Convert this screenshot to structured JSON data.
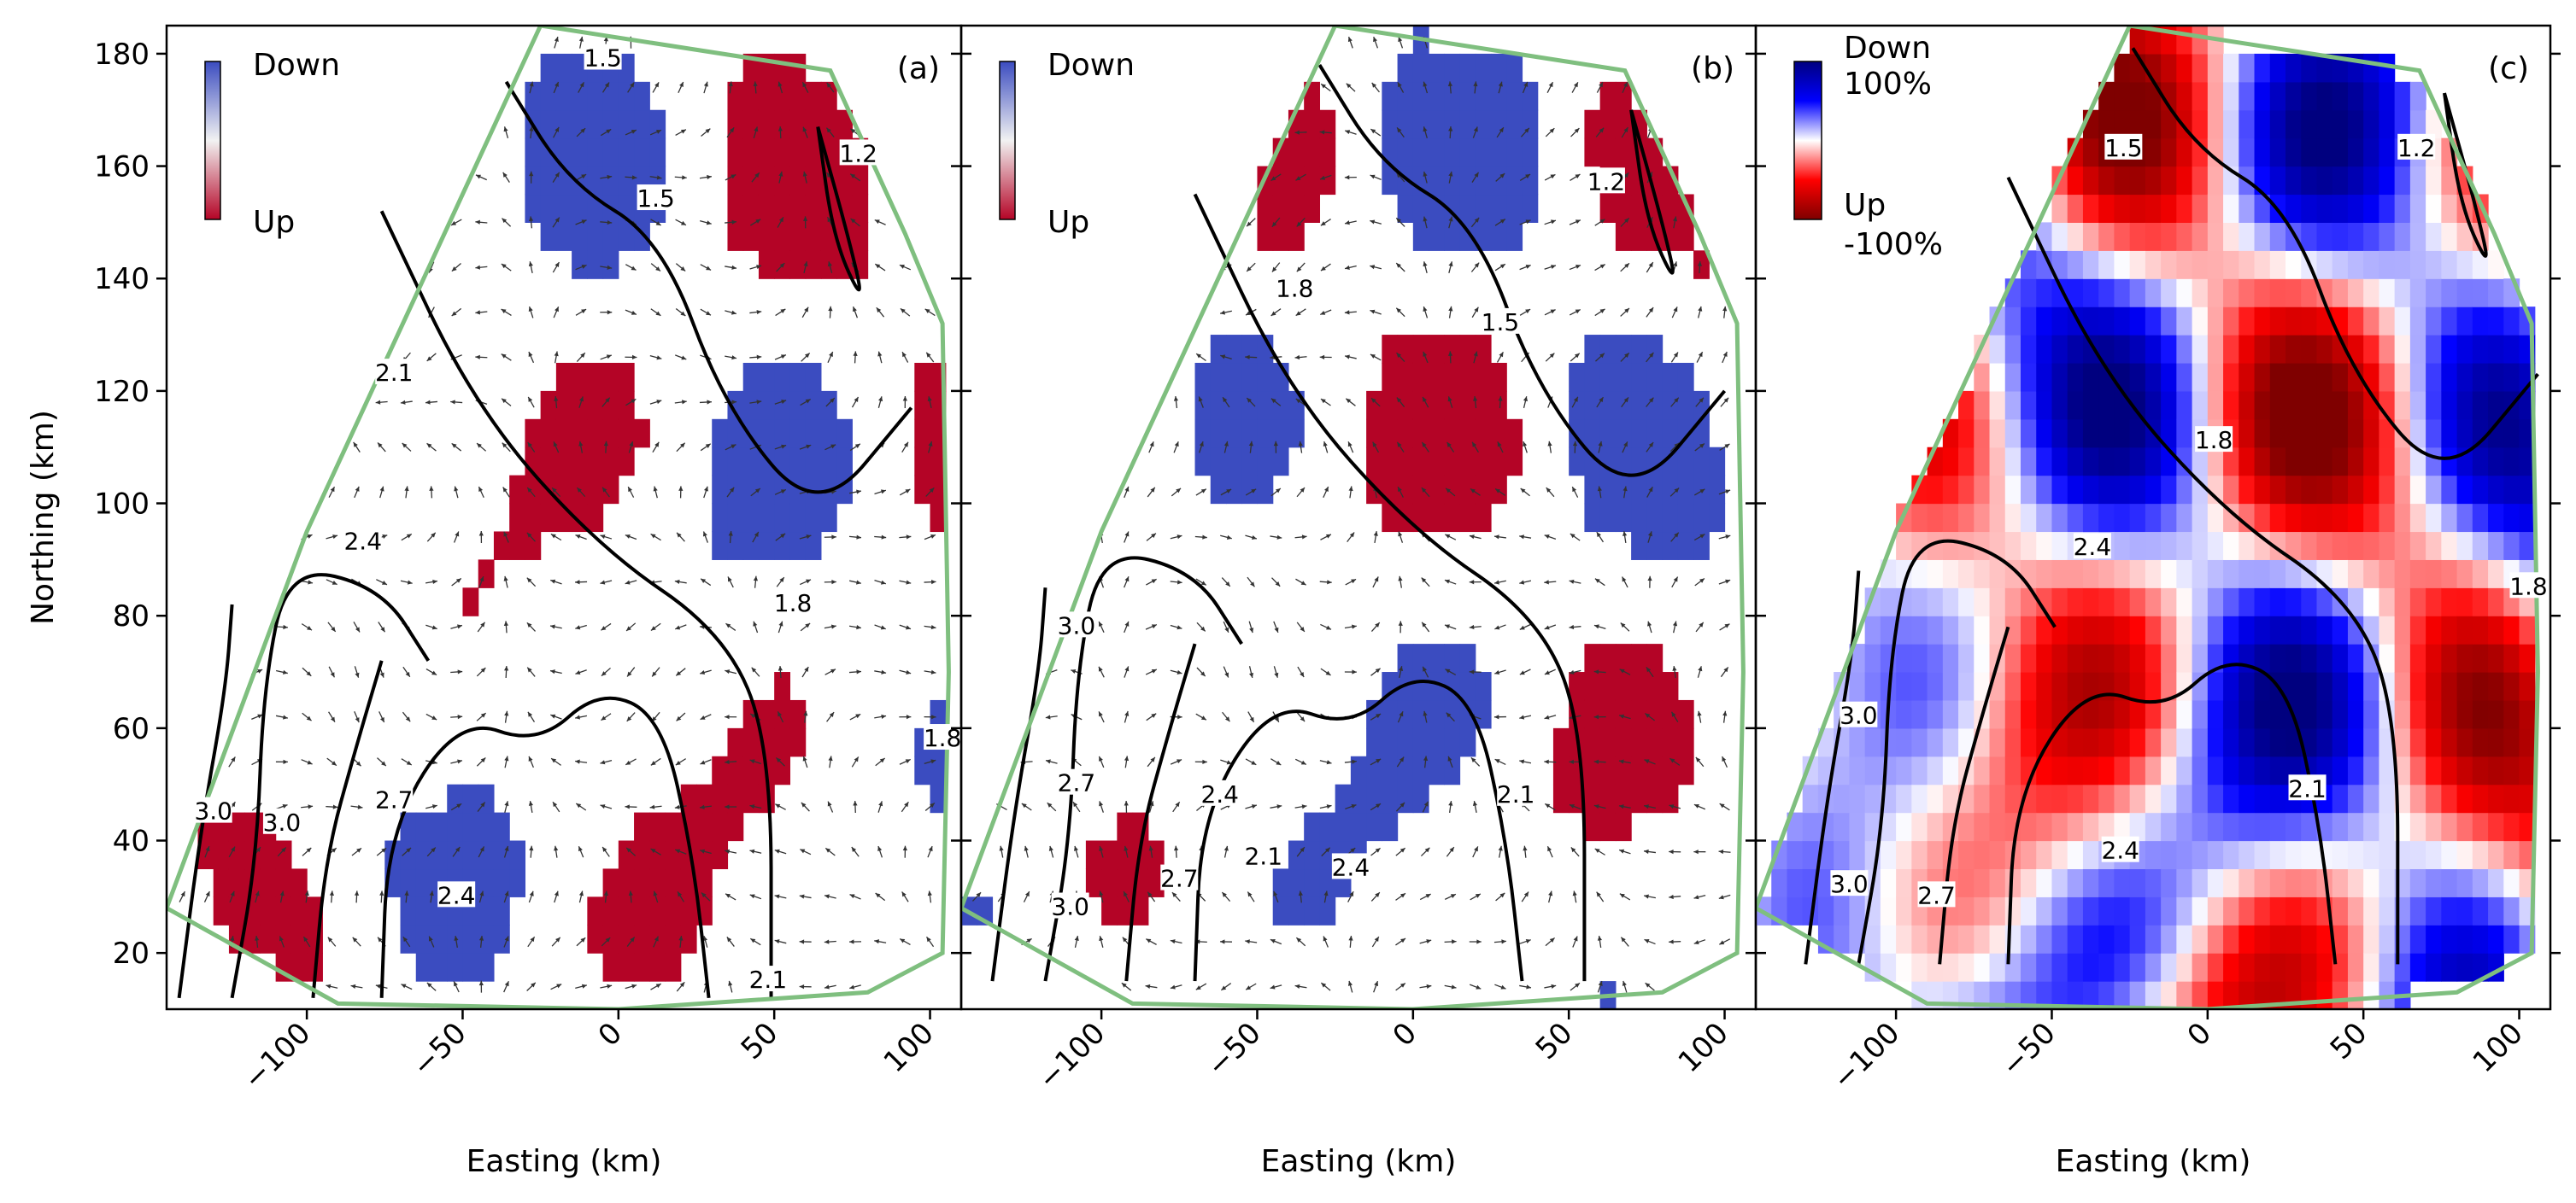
{
  "chart_data": [
    {
      "type": "heatmap",
      "panel_label": "(a)",
      "xlabel": "Easting (km)",
      "ylabel": "Northing (km)",
      "xlim": [
        -145,
        110
      ],
      "ylim": [
        10,
        185
      ],
      "xticks": [
        -100,
        -50,
        0,
        50,
        100
      ],
      "yticks": [
        20,
        40,
        60,
        80,
        100,
        120,
        140,
        160,
        180
      ],
      "colorbar": {
        "top_label": "Down",
        "bottom_label": "Up",
        "top_color": "#3b4cc0",
        "bottom_color": "#b40426"
      },
      "colors": {
        "down": "#3b4cc0",
        "up": "#b40426",
        "boundary": "#7fbf7f",
        "contour": "#000000"
      },
      "contour_labels": [
        {
          "text": "1.5",
          "x": -5,
          "y": 179
        },
        {
          "text": "1.5",
          "x": 12,
          "y": 154
        },
        {
          "text": "1.2",
          "x": 77,
          "y": 162
        },
        {
          "text": "2.1",
          "x": -72,
          "y": 123
        },
        {
          "text": "2.4",
          "x": -82,
          "y": 93
        },
        {
          "text": "1.8",
          "x": 56,
          "y": 82
        },
        {
          "text": "1.8",
          "x": 104,
          "y": 58
        },
        {
          "text": "3.0",
          "x": -130,
          "y": 45
        },
        {
          "text": "3.0",
          "x": -108,
          "y": 43
        },
        {
          "text": "2.7",
          "x": -72,
          "y": 47
        },
        {
          "text": "2.4",
          "x": -52,
          "y": 30
        },
        {
          "text": "2.1",
          "x": 48,
          "y": 15
        }
      ]
    },
    {
      "type": "heatmap",
      "panel_label": "(b)",
      "xlabel": "Easting (km)",
      "ylabel": "",
      "xlim": [
        -145,
        110
      ],
      "ylim": [
        10,
        185
      ],
      "xticks": [
        -100,
        -50,
        0,
        50,
        100
      ],
      "yticks": [
        20,
        40,
        60,
        80,
        100,
        120,
        140,
        160,
        180
      ],
      "colorbar": {
        "top_label": "Down",
        "bottom_label": "Up",
        "top_color": "#3b4cc0",
        "bottom_color": "#b40426"
      },
      "colors": {
        "down": "#3b4cc0",
        "up": "#b40426",
        "boundary": "#7fbf7f",
        "contour": "#000000"
      },
      "contour_labels": [
        {
          "text": "1.2",
          "x": 62,
          "y": 157
        },
        {
          "text": "1.8",
          "x": -38,
          "y": 138
        },
        {
          "text": "1.5",
          "x": 28,
          "y": 132
        },
        {
          "text": "3.0",
          "x": -108,
          "y": 78
        },
        {
          "text": "2.7",
          "x": -108,
          "y": 50
        },
        {
          "text": "2.4",
          "x": -62,
          "y": 48
        },
        {
          "text": "2.1",
          "x": 33,
          "y": 48
        },
        {
          "text": "2.1",
          "x": -48,
          "y": 37
        },
        {
          "text": "2.4",
          "x": -20,
          "y": 35
        },
        {
          "text": "2.7",
          "x": -75,
          "y": 33
        },
        {
          "text": "3.0",
          "x": -110,
          "y": 28
        }
      ]
    },
    {
      "type": "heatmap",
      "panel_label": "(c)",
      "xlabel": "Easting (km)",
      "ylabel": "",
      "xlim": [
        -145,
        110
      ],
      "ylim": [
        10,
        185
      ],
      "xticks": [
        -100,
        -50,
        0,
        50,
        100
      ],
      "yticks": [
        20,
        40,
        60,
        80,
        100,
        120,
        140,
        160,
        180
      ],
      "colorbar": {
        "top_label": "Down",
        "top_value": "100%",
        "bottom_label": "Up",
        "bottom_value": "-100%",
        "top_color": "#00007f",
        "bottom_color": "#7f0000"
      },
      "colors": {
        "boundary": "#7fbf7f",
        "contour": "#000000"
      },
      "contour_labels": [
        {
          "text": "1.5",
          "x": -27,
          "y": 163
        },
        {
          "text": "1.2",
          "x": 67,
          "y": 163
        },
        {
          "text": "1.8",
          "x": 2,
          "y": 111
        },
        {
          "text": "2.4",
          "x": -37,
          "y": 92
        },
        {
          "text": "1.8",
          "x": 103,
          "y": 85
        },
        {
          "text": "3.0",
          "x": -112,
          "y": 62
        },
        {
          "text": "2.1",
          "x": 32,
          "y": 49
        },
        {
          "text": "2.4",
          "x": -28,
          "y": 38
        },
        {
          "text": "3.0",
          "x": -115,
          "y": 32
        },
        {
          "text": "2.7",
          "x": -87,
          "y": 30
        }
      ]
    }
  ]
}
